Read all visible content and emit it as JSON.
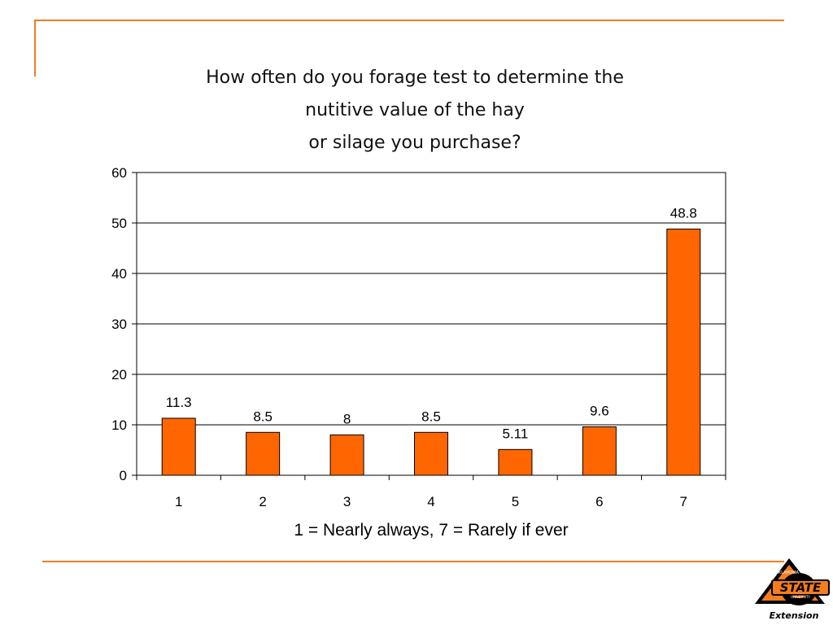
{
  "chart_data": {
    "type": "bar",
    "title": "How often do you forage test to determine the\nnutitive value of the hay\nor silage you purchase?",
    "xlabel": "1 = Nearly always, 7 = Rarely if ever",
    "ylabel": "",
    "categories": [
      "1",
      "2",
      "3",
      "4",
      "5",
      "6",
      "7"
    ],
    "values": [
      11.3,
      8.5,
      8,
      8.5,
      5.11,
      9.6,
      48.8
    ],
    "data_labels": [
      "11.3",
      "8.5",
      "8",
      "8.5",
      "5.11",
      "9.6",
      "48.8"
    ],
    "ylim": [
      0,
      60
    ],
    "yticks": [
      0,
      10,
      20,
      30,
      40,
      50,
      60
    ],
    "grid": true,
    "legend": "none",
    "bar_color": "#ff6600"
  },
  "colors": {
    "accent": "#f07d24",
    "logo_orange": "#f47d20",
    "logo_black": "#000000"
  },
  "logo": {
    "main_text": "STATE",
    "sub_text": "Extension",
    "small_top": "OKLAHOMA",
    "small_bottom": "UNIVERSITY"
  }
}
